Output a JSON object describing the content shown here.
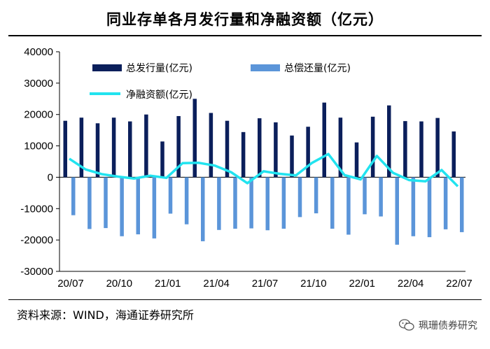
{
  "title": "同业存单各月发行量和净融资额（亿元）",
  "source": "资料来源：WIND，海通证券研究所",
  "watermark": "珮珊债券研究",
  "colors": {
    "issuance": "#0b1f5b",
    "repayment": "#5b95d9",
    "net": "#21e3ef"
  },
  "chart_data": {
    "type": "bar",
    "title": "同业存单各月发行量和净融资额（亿元）",
    "ylim": [
      -30000,
      40000
    ],
    "yticks": [
      40000,
      30000,
      20000,
      10000,
      0,
      -10000,
      -20000,
      -30000
    ],
    "x_tick_labels": [
      "20/07",
      "20/10",
      "21/01",
      "21/04",
      "21/07",
      "21/10",
      "22/01",
      "22/04",
      "22/07"
    ],
    "categories": [
      "20/07",
      "20/08",
      "20/09",
      "20/10",
      "20/11",
      "20/12",
      "21/01",
      "21/02",
      "21/03",
      "21/04",
      "21/05",
      "21/06",
      "21/07",
      "21/08",
      "21/09",
      "21/10",
      "21/11",
      "21/12",
      "22/01",
      "22/02",
      "22/03",
      "22/04",
      "22/05",
      "22/06",
      "22/07"
    ],
    "legend": [
      "总发行量(亿元)",
      "总偿还量(亿元)",
      "净融资额(亿元)"
    ],
    "series": [
      {
        "name": "总发行量(亿元)",
        "type": "bar",
        "values": [
          18000,
          19000,
          17200,
          19000,
          17800,
          20000,
          11400,
          19500,
          25000,
          20500,
          18000,
          14400,
          18800,
          17500,
          13300,
          16100,
          23800,
          19000,
          11100,
          19300,
          22900,
          17900,
          17800,
          18900,
          14600
        ]
      },
      {
        "name": "总偿还量(亿元)",
        "type": "bar",
        "values": [
          -12100,
          -16500,
          -16200,
          -18800,
          -18200,
          -19500,
          -11600,
          -15000,
          -20400,
          -16800,
          -16400,
          -16300,
          -16900,
          -16400,
          -12700,
          -11500,
          -16400,
          -18300,
          -11800,
          -12500,
          -21500,
          -18800,
          -19100,
          -16600,
          -17500
        ]
      },
      {
        "name": "净融资额(亿元)",
        "type": "line",
        "values": [
          5900,
          2500,
          1000,
          200,
          -400,
          500,
          -200,
          4500,
          4600,
          3700,
          1600,
          -1900,
          1900,
          1100,
          600,
          4600,
          7400,
          700,
          -700,
          6800,
          1400,
          -900,
          -1300,
          2300,
          -2900
        ]
      }
    ]
  }
}
